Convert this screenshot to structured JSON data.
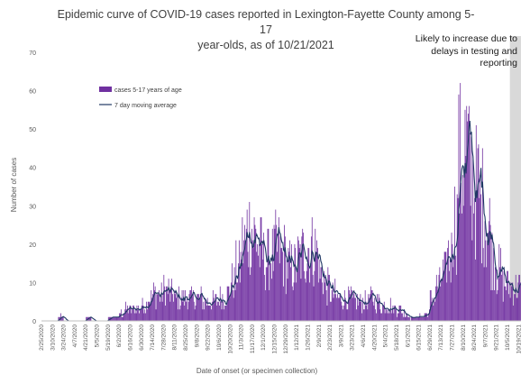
{
  "chart_data": {
    "type": "bar",
    "title": "Epidemic curve of COVID-19 cases reported in Lexington-Fayette County among 5-17 year-olds, as of 10/21/2021",
    "title_lines": [
      "Epidemic curve of COVID-19 cases reported in Lexington-Fayette County among 5-17",
      "year-olds, as of 10/21/2021"
    ],
    "xlabel": "Date of onset (or specimen collection)",
    "ylabel": "Number of cases",
    "ylim": [
      0,
      70
    ],
    "yticks": [
      0,
      10,
      20,
      30,
      40,
      50,
      60,
      70
    ],
    "annotation": "Likely to increase due to delays in testing and reporting",
    "annotation_lines": [
      "Likely to increase due to",
      "delays in testing and",
      "reporting"
    ],
    "shaded_region": {
      "from": "10/8/2021",
      "to": "10/21/2021",
      "color": "#d9d9d9"
    },
    "legend": {
      "position": "upper-left",
      "entries": [
        "cases 5-17 years of age",
        "7 day moving average"
      ]
    },
    "series": [
      {
        "name": "cases 5-17 years of age",
        "kind": "bar",
        "color": "#7030a0"
      },
      {
        "name": "7 day moving average",
        "kind": "line",
        "color": "#1f3864"
      }
    ],
    "x_start": "2/25/2020",
    "x_end": "10/21/2021",
    "tick_labels": [
      "2/25/2020",
      "3/10/2020",
      "3/24/2020",
      "4/7/2020",
      "4/21/2020",
      "5/5/2020",
      "5/19/2020",
      "6/2/2020",
      "6/16/2020",
      "6/30/2020",
      "7/14/2020",
      "7/28/2020",
      "8/11/2020",
      "8/25/2020",
      "9/8/2020",
      "9/22/2020",
      "10/6/2020",
      "10/20/2020",
      "11/3/2020",
      "11/17/2020",
      "12/1/2020",
      "12/15/2020",
      "12/29/2020",
      "1/12/2021",
      "1/26/2021",
      "2/9/2021",
      "2/23/2021",
      "3/9/2021",
      "3/23/2021",
      "4/6/2021",
      "4/20/2021",
      "5/4/2021",
      "5/18/2021",
      "6/1/2021",
      "6/15/2021",
      "6/29/2021",
      "7/13/2021",
      "7/27/2021",
      "8/10/2021",
      "8/24/2021",
      "9/7/2021",
      "9/21/2021",
      "10/5/2021",
      "10/19/2021"
    ],
    "weekly_avg_cases": [
      0,
      0,
      0,
      1,
      0,
      0,
      0,
      0,
      1,
      0,
      0,
      0,
      1,
      1,
      2,
      3,
      3,
      3,
      4,
      6,
      7,
      7,
      8,
      7,
      6,
      6,
      6,
      6,
      6,
      5,
      5,
      5,
      6,
      7,
      10,
      14,
      20,
      24,
      22,
      18,
      16,
      17,
      19,
      17,
      14,
      14,
      16,
      18,
      19,
      18,
      12,
      9,
      7,
      6,
      6,
      6,
      5,
      5,
      5,
      6,
      5,
      4,
      4,
      3,
      3,
      2,
      1,
      1,
      1,
      2,
      6,
      9,
      12,
      17,
      26,
      41,
      44,
      38,
      34,
      30,
      24,
      17,
      13,
      10,
      9
    ],
    "weekly_avg_moving": [
      0,
      0,
      0,
      0.5,
      0,
      0,
      0,
      0,
      0.5,
      0,
      0,
      0,
      0.5,
      1,
      2,
      3,
      3,
      3,
      4,
      6,
      7,
      7,
      8,
      7,
      6,
      6,
      6,
      6,
      6,
      5,
      5,
      5,
      6,
      7,
      10,
      14,
      20,
      24,
      22,
      18,
      16,
      17,
      19,
      17,
      14,
      14,
      16,
      18,
      19,
      18,
      12,
      9,
      7,
      6,
      6,
      6,
      5,
      5,
      5,
      6,
      5,
      4,
      4,
      3,
      3,
      2,
      1,
      1,
      1,
      2,
      6,
      9,
      12,
      17,
      26,
      41,
      44,
      38,
      34,
      30,
      24,
      17,
      13,
      10,
      9
    ]
  }
}
